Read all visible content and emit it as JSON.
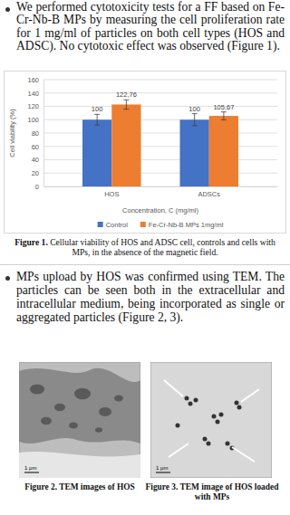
{
  "paragraph_1": "We performed cytotoxicity tests for a FF based on Fe-Cr-Nb-B MPs by measuring the cell proliferation rate for 1 mg/ml of particles on both cell types (HOS and ADSC). No cytotoxic effect was observed (Figure 1).",
  "chart_data": {
    "type": "bar",
    "categories": [
      "HOS",
      "ADSCs"
    ],
    "series": [
      {
        "name": "Control",
        "color": "#4472c4",
        "values": [
          100,
          100
        ],
        "value_labels": [
          "100",
          "100"
        ],
        "errors": [
          8,
          9
        ]
      },
      {
        "name": "Fe-Cr-Nb-B MPs 1mg/ml",
        "color": "#ed7d31",
        "values": [
          122.76,
          105.67
        ],
        "value_labels": [
          "122,76",
          "105,67"
        ],
        "errors": [
          7,
          6
        ]
      }
    ],
    "x_label": "Concentration, C (mg/ml)",
    "y_label": "Cell viability (%)",
    "ylim": [
      0,
      160
    ],
    "yticks": [
      0,
      20,
      40,
      60,
      80,
      100,
      120,
      140,
      160
    ],
    "grid": true,
    "legend": "bottom",
    "data_labels": true
  },
  "figure_1": {
    "label": "Figure 1.",
    "caption": "Cellular viability of HOS and ADSC cell, controls and cells with MPs, in the absence of the magnetic field."
  },
  "paragraph_2": "MPs upload by HOS was confirmed using TEM. The particles can be seen both in the extracellular and intracellular medium, being incorporated as single or aggregated particles (Figure 2, 3).",
  "figure_2": {
    "label": "Figure 2.",
    "caption": "TEM images of HOS",
    "scale_bar": "1 μm"
  },
  "figure_3": {
    "label": "Figure 3.",
    "caption": "TEM image of HOS loaded with MPs",
    "scale_bar": "1 μm"
  }
}
